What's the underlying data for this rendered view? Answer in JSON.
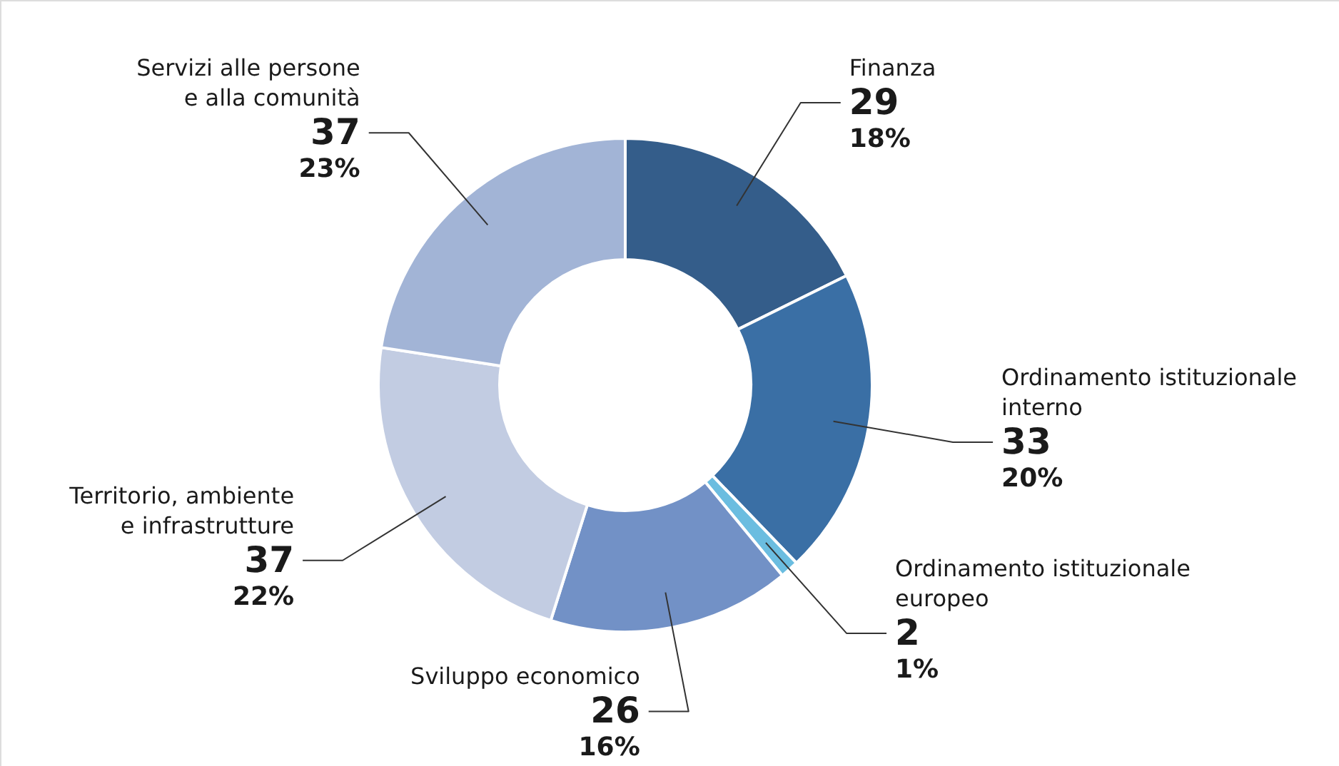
{
  "chart_data": {
    "type": "donut",
    "categories": [
      "Finanza",
      "Ordinamento istituzionale\ninterno",
      "Ordinamento istituzionale\neuropeo",
      "Sviluppo economico",
      "Territorio, ambiente\ne infrastrutture",
      "Servizi alle persone\ne alla comunità"
    ],
    "values": [
      29,
      33,
      2,
      26,
      37,
      37
    ],
    "colors": [
      "#345d8a",
      "#3a6fa5",
      "#6bbde0",
      "#7291c6",
      "#c2cce2",
      "#a2b4d6"
    ],
    "data_labels": true,
    "annotations": [
      "18%",
      "20%",
      "1%",
      "16%",
      "22%",
      "23%"
    ]
  }
}
